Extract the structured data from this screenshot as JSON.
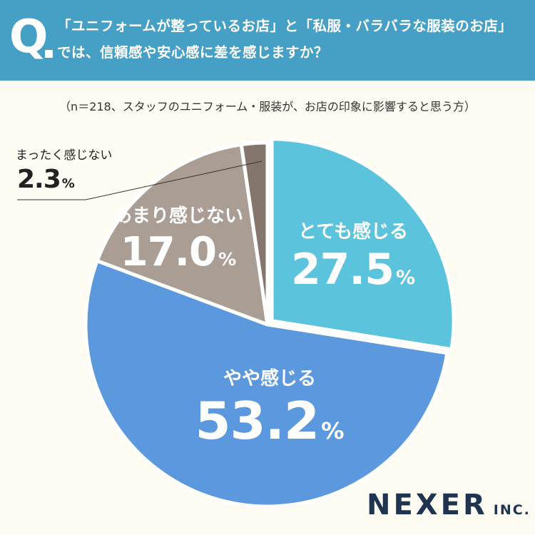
{
  "header": {
    "q_mark": "Q",
    "question_line1": "「ユニフォームが整っているお店」と「私服・バラバラな服装のお店」",
    "question_line2": "では、信頼感や安心感に差を感じますか？"
  },
  "subtitle": "（n＝218、スタッフのユニフォーム・服装が、お店の印象に影響すると思う方）",
  "logo": {
    "main": "NEXER",
    "suffix": "INC."
  },
  "colors": {
    "header_bg": "#46a0c6",
    "background": "#fdfbf2",
    "slice_strong": "#5cc3dc",
    "slice_some": "#5b98dd",
    "slice_not_much": "#aa9d94",
    "slice_not_at_all": "#85766d"
  },
  "chart_data": {
    "type": "pie",
    "title": "",
    "start": "12 o'clock, clockwise",
    "slices": [
      {
        "label": "とても感じる",
        "value": 27.5,
        "display": "27.5",
        "unit": "%",
        "color": "#5cc3dc"
      },
      {
        "label": "やや感じる",
        "value": 53.2,
        "display": "53.2",
        "unit": "%",
        "color": "#5b98dd"
      },
      {
        "label": "あまり感じない",
        "value": 17.0,
        "display": "17.0",
        "unit": "%",
        "color": "#aa9d94"
      },
      {
        "label": "まったく感じない",
        "value": 2.3,
        "display": "2.3",
        "unit": "%",
        "color": "#85766d"
      }
    ]
  }
}
